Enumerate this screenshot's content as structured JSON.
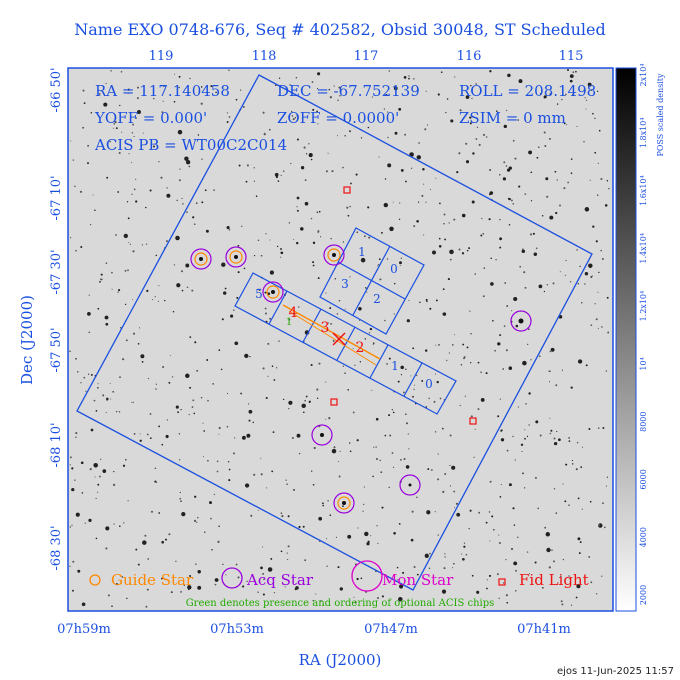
{
  "title": "Name EXO 0748-676, Seq # 402582, Obsid 30048, ST Scheduled",
  "top_ticks": [
    "119",
    "118",
    "117",
    "116",
    "115"
  ],
  "bottom_ticks": [
    "07h59m",
    "07h53m",
    "07h47m",
    "07h41m"
  ],
  "left_ticks": [
    "-66 50'",
    "-67 10'",
    "-67 30'",
    "-67 50'",
    "-68 10'",
    "-68 30'"
  ],
  "xlabel": "RA (J2000)",
  "ylabel": "Dec (J2000)",
  "info": {
    "ra": "RA = 117.140458",
    "dec": "DEC = -67.752139",
    "roll": "ROLL = 208.1498",
    "yoff": "YOFF = 0.000'",
    "zoff": "ZOFF = 0.0000'",
    "zsim": "ZSIM = 0 mm",
    "acis": "ACIS PB = WT00C2C014"
  },
  "colorbar": {
    "label": "POSS scaled density",
    "ticks": [
      "2000",
      "4000",
      "6000",
      "8000",
      "10⁴",
      "1.2x10⁴",
      "1.4x10⁴",
      "1.6x10⁴",
      "1.8x10⁴",
      "2x10⁴"
    ]
  },
  "chips_upper": [
    "1",
    "0",
    "3",
    "2"
  ],
  "chips_lower": [
    "5",
    "4",
    "3",
    "2",
    "1",
    "0"
  ],
  "chip_optional": "1",
  "legend": {
    "guide": "Guide Star",
    "acq": "Acq Star",
    "mon": "Mon Star",
    "fid": "Fid Light",
    "note": "Green denotes presence and ordering of optional ACIS chips"
  },
  "footer": "ejos 11-Jun-2025 11:57",
  "colors": {
    "axis_blue": "#1a4fe0",
    "guide": "#ff8800",
    "acq": "#9900dd",
    "mon": "#dd00cc",
    "fid": "#ee1111",
    "optional": "#22aa00"
  }
}
